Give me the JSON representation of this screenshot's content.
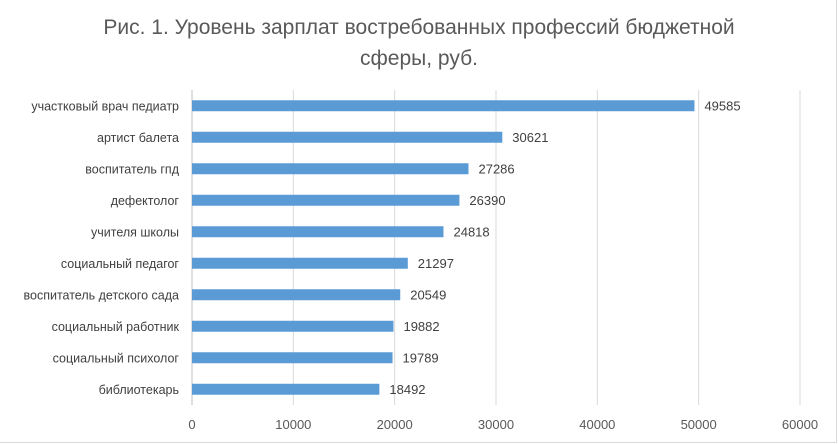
{
  "chart_data": {
    "type": "bar",
    "orientation": "horizontal",
    "title": "Рис. 1. Уровень зарплат востребованных профессий бюджетной сферы, руб.",
    "categories": [
      "участковый врач педиатр",
      "артист балета",
      "воспитатель гпд",
      "дефектолог",
      "учителя школы",
      "социальный педагог",
      "воспитатель детского сада",
      "социальный работник",
      "социальный психолог",
      "библиотекарь"
    ],
    "values": [
      49585,
      30621,
      27286,
      26390,
      24818,
      21297,
      20549,
      19882,
      19789,
      18492
    ],
    "xlim": [
      0,
      60000
    ],
    "xticks": [
      0,
      10000,
      20000,
      30000,
      40000,
      50000,
      60000
    ],
    "grid": "vertical",
    "data_labels": true,
    "legend": "none",
    "bar_color": "#5b9bd5"
  }
}
